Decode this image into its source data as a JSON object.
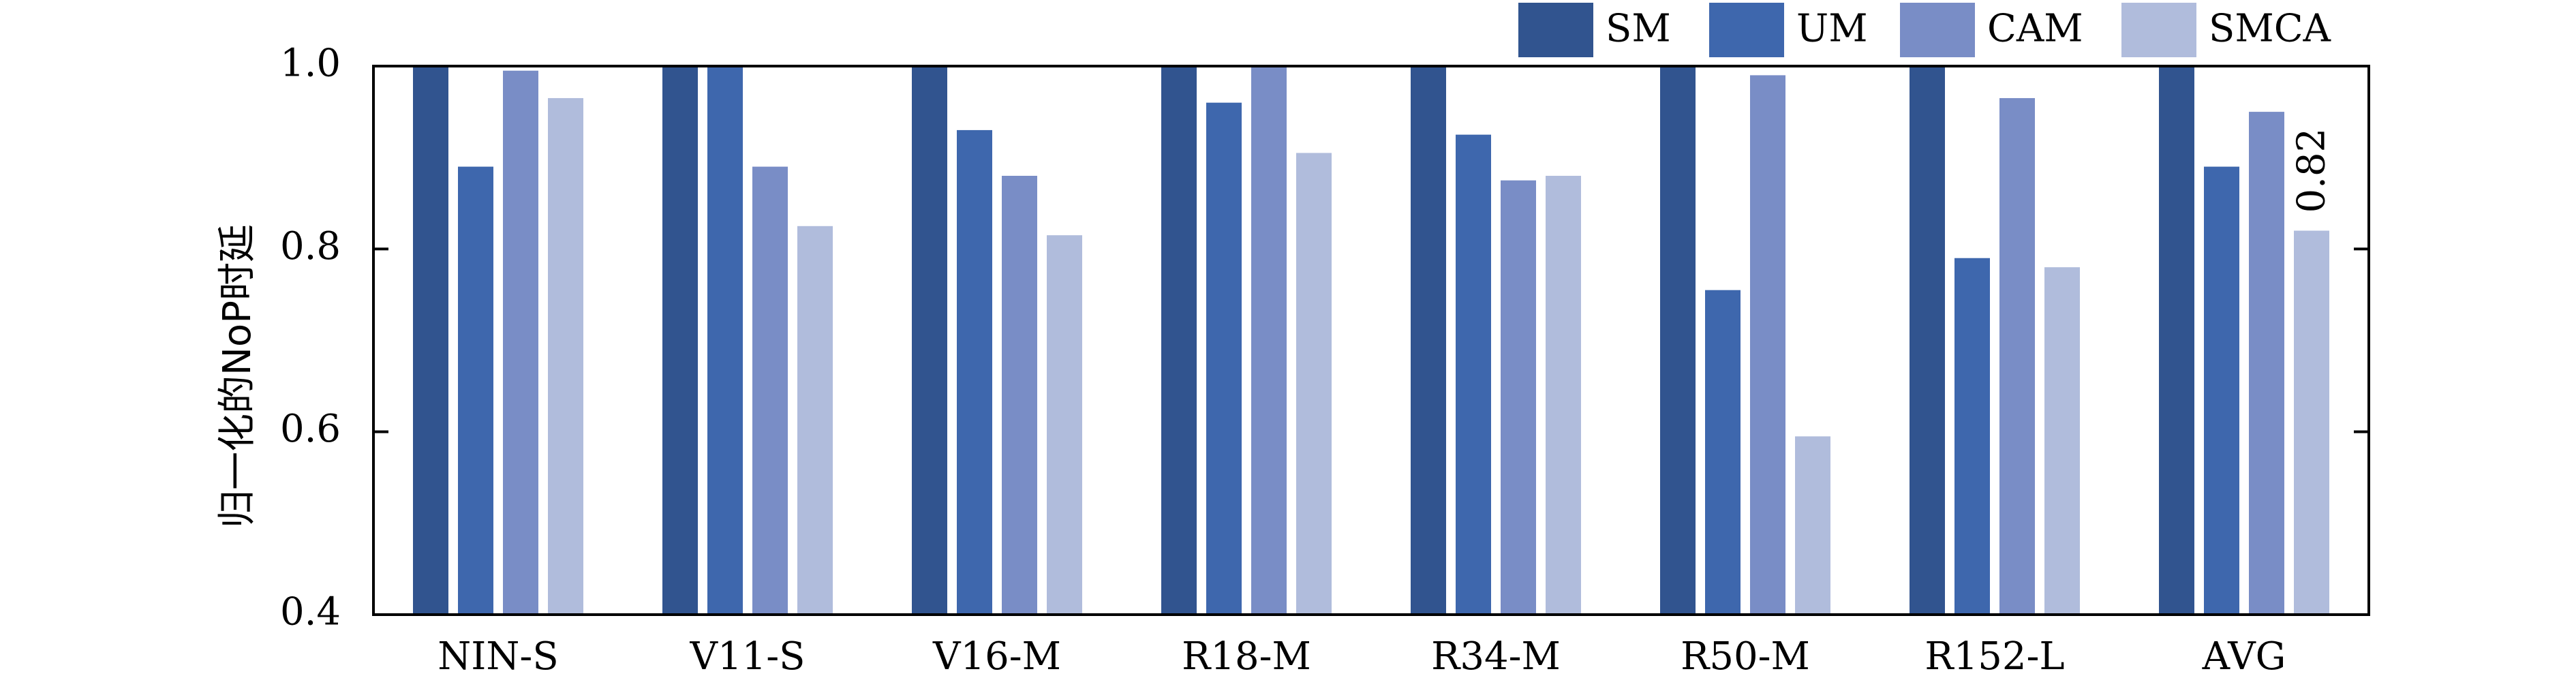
{
  "chart_data": {
    "type": "bar",
    "ylabel": "归一化的NoP时延",
    "ylim": [
      0.4,
      1.0
    ],
    "yticks": [
      "0.4",
      "0.6",
      "0.8",
      "1.0"
    ],
    "categories": [
      "NIN-S",
      "V11-S",
      "V16-M",
      "R18-M",
      "R34-M",
      "R50-M",
      "R152-L",
      "AVG"
    ],
    "series": [
      {
        "name": "SM",
        "color": "#31548f",
        "values": [
          1.0,
          1.0,
          1.0,
          1.0,
          1.0,
          1.0,
          1.0,
          1.0
        ]
      },
      {
        "name": "UM",
        "color": "#3e67ad",
        "values": [
          0.89,
          1.0,
          0.93,
          0.96,
          0.925,
          0.755,
          0.79,
          0.89
        ]
      },
      {
        "name": "CAM",
        "color": "#798dc6",
        "values": [
          0.995,
          0.89,
          0.88,
          1.0,
          0.875,
          0.99,
          0.965,
          0.95
        ]
      },
      {
        "name": "SMCA",
        "color": "#b0bcdc",
        "values": [
          0.965,
          0.825,
          0.815,
          0.905,
          0.88,
          0.595,
          0.78,
          0.82
        ]
      }
    ],
    "annotations": [
      {
        "text": "0.82",
        "category": "AVG",
        "series": "SMCA"
      }
    ],
    "legend": "top-right",
    "grid": false
  }
}
